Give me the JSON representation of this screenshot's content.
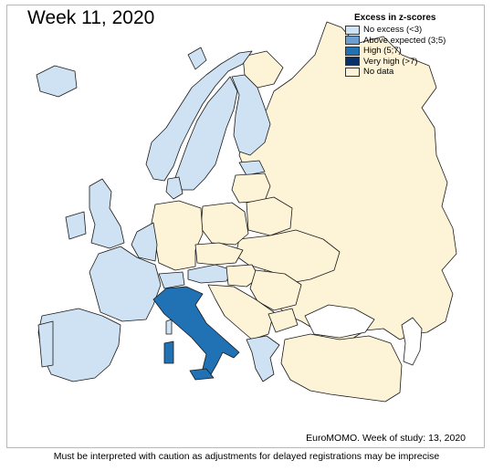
{
  "title": "Week 11, 2020",
  "legend": {
    "title": "Excess in z-scores",
    "items": [
      {
        "label": "No excess (<3)",
        "color": "#cfe2f3"
      },
      {
        "label": "Above expected (3;5)",
        "color": "#6a9fd0"
      },
      {
        "label": "High (5;7)",
        "color": "#2171b5"
      },
      {
        "label": "Very high (>7)",
        "color": "#08306b"
      },
      {
        "label": "No data",
        "color": "#fdf3d7"
      }
    ]
  },
  "regions": [
    {
      "name": "Norway",
      "category": "No excess (<3)"
    },
    {
      "name": "Sweden",
      "category": "No excess (<3)"
    },
    {
      "name": "Finland",
      "category": "No excess (<3)"
    },
    {
      "name": "Denmark",
      "category": "No excess (<3)"
    },
    {
      "name": "United Kingdom",
      "category": "No excess (<3)"
    },
    {
      "name": "Ireland",
      "category": "No excess (<3)"
    },
    {
      "name": "Netherlands",
      "category": "No excess (<3)"
    },
    {
      "name": "Belgium",
      "category": "No excess (<3)"
    },
    {
      "name": "France",
      "category": "No excess (<3)"
    },
    {
      "name": "Spain",
      "category": "No excess (<3)"
    },
    {
      "name": "Portugal",
      "category": "No excess (<3)"
    },
    {
      "name": "Switzerland",
      "category": "No excess (<3)"
    },
    {
      "name": "Austria",
      "category": "No excess (<3)"
    },
    {
      "name": "Greece",
      "category": "No excess (<3)"
    },
    {
      "name": "Estonia",
      "category": "No excess (<3)"
    },
    {
      "name": "Italy",
      "category": "High (5;7)"
    }
  ],
  "source": "EuroMOMO. Week of study: 13, 2020",
  "caveat": "Must be interpreted with caution as adjustments for delayed registrations may be imprecise"
}
